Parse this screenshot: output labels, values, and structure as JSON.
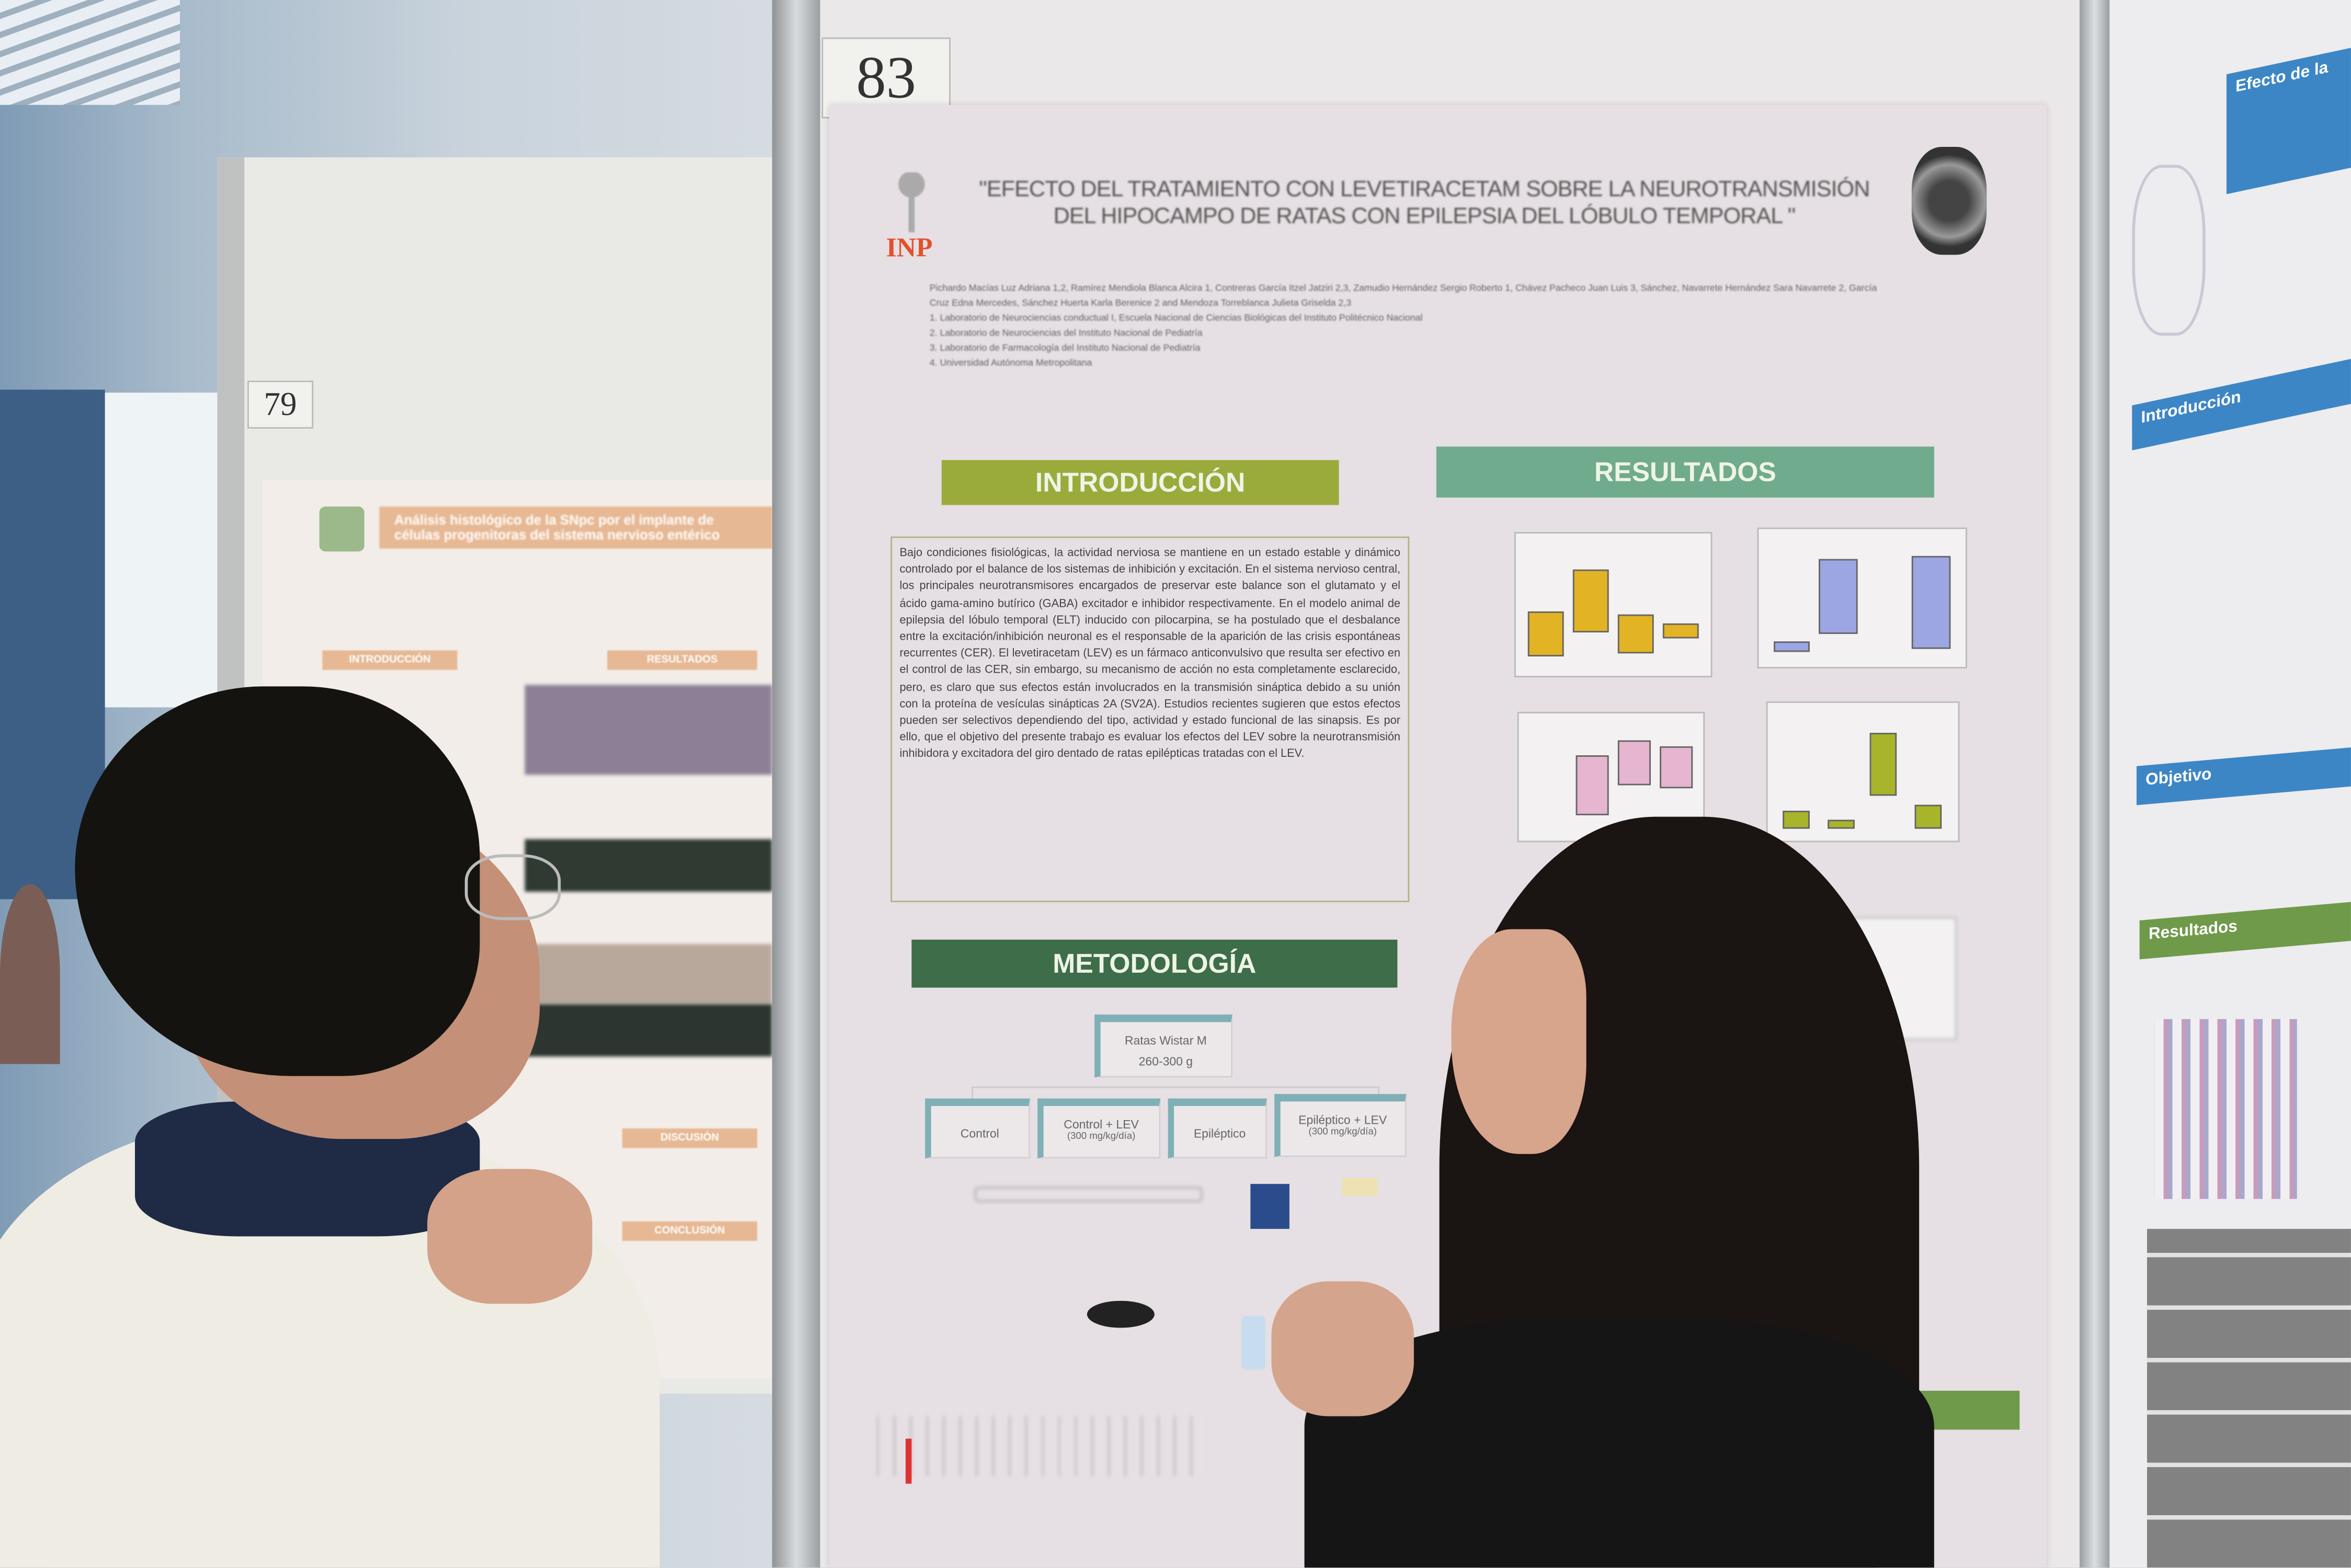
{
  "scene": {
    "left_poster": {
      "number": "79",
      "title": "Análisis histológico de la SNpc por el implante de células progenitoras del sistema nervioso entérico",
      "sections": [
        "INTRODUCCIÓN",
        "RESULTADOS",
        "DISCUSIÓN",
        "CONCLUSIÓN"
      ]
    },
    "center_poster": {
      "number": "83",
      "logo_left": "INP",
      "title": "\"EFECTO DEL TRATAMIENTO CON LEVETIRACETAM SOBRE LA NEUROTRANSMISIÓN DEL HIPOCAMPO DE RATAS CON EPILEPSIA DEL LÓBULO TEMPORAL \"",
      "authors": "Pichardo Macías Luz Adriana 1,2, Ramírez Mendiola Blanca Alcira 1, Contreras García Itzel Jatziri 2,3, Zamudio Hernández Sergio Roberto 1, Chávez Pacheco Juan Luis 3, Sánchez, Navarrete Hernández Sara Navarrete 2, García Cruz Edna Mercedes, Sánchez Huerta Karla Berenice 2 and Mendoza Torreblanca Julieta Griselda 2,3",
      "affiliations": [
        "1. Laboratorio de Neurociencias conductual I, Escuela Nacional de Ciencias Biológicas del Instituto Politécnico Nacional",
        "2. Laboratorio de Neurociencias del Instituto Nacional de Pediatría",
        "3. Laboratorio de Farmacología del Instituto Nacional de Pediatría",
        "4. Universidad Autónoma Metropolitana"
      ],
      "intro_heading": "INTRODUCCIÓN",
      "intro_text": "Bajo condiciones fisiológicas, la actividad nerviosa se mantiene en un estado estable y dinámico controlado por el balance de los sistemas de inhibición y excitación. En el sistema nervioso central, los principales neurotransmisores encargados de preservar este balance son el glutamato y el ácido gama-amino butírico (GABA) excitador e inhibidor respectivamente. En el modelo animal de epilepsia del lóbulo temporal (ELT) inducido con pilocarpina, se ha postulado que el desbalance entre la excitación/inhibición neuronal es el responsable de la aparición de las crisis espontáneas recurrentes (CER). El levetiracetam (LEV) es un fármaco anticonvulsivo que resulta ser efectivo en el control de las CER, sin embargo, su mecanismo de acción no esta completamente esclarecido, pero, es claro que sus efectos están involucrados en la transmisión sináptica debido a su unión con la proteína de vesículas sinápticas 2A (SV2A). Estudios recientes sugieren que estos efectos pueden ser selectivos dependiendo del tipo, actividad y estado funcional de las sinapsis. Es por ello, que el objetivo del presente trabajo es evaluar los efectos del LEV sobre la neurotransmisión inhibidora y excitadora del giro dentado de ratas epilépticas tratadas con el LEV.",
      "results_heading": "RESULTADOS",
      "methods_heading": "METODOLOGÍA",
      "flow_root": [
        "Ratas Wistar M",
        "260-300 g"
      ],
      "flow_groups": [
        {
          "label": "Control",
          "dose": ""
        },
        {
          "label": "Control + LEV",
          "dose": "(300 mg/kg/día)"
        },
        {
          "label": "Epiléptico",
          "dose": ""
        },
        {
          "label": "Epiléptico + LEV",
          "dose": "(300 mg/kg/día)"
        }
      ],
      "colors": {
        "intro": "#9aab3c",
        "results": "#6fab8c",
        "methods": "#3e6d49",
        "flow_accent": "#7fb0b6",
        "inp_red": "#e2502c"
      }
    },
    "right_poster": {
      "headings": [
        "Efecto de la",
        "Introducción",
        "Objetivo",
        "Resultados"
      ],
      "colors": {
        "blue": "#3d86c6",
        "green": "#6f9a4a"
      }
    }
  }
}
